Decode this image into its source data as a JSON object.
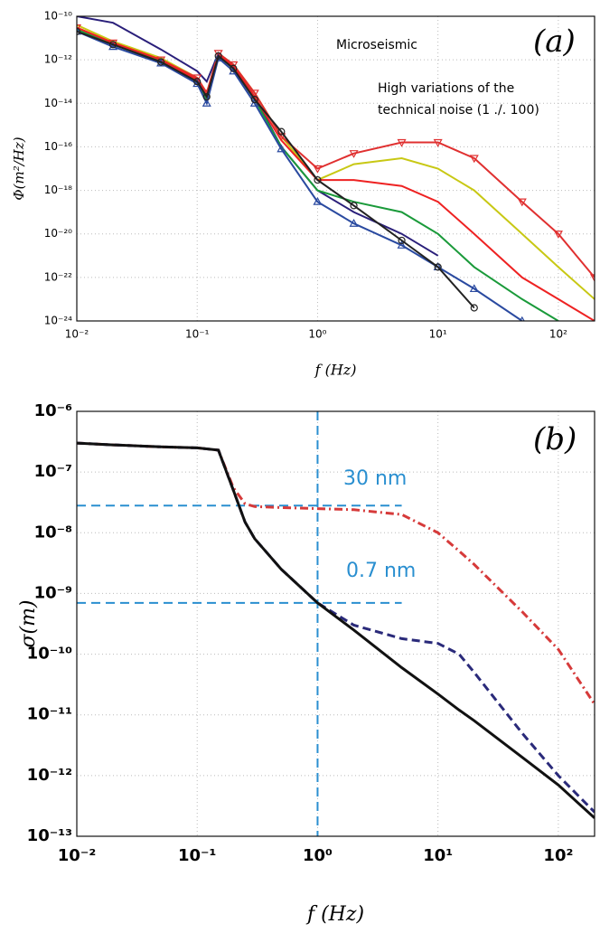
{
  "chart_data": [
    {
      "type": "line",
      "annotations": [
        "(a)",
        "Microseismic",
        [
          "High variations of the",
          "technical noise (1 ./. 100)"
        ]
      ],
      "xlabel": "f (Hz)",
      "ylabel": "Φ(m²/Hz)",
      "xscale": "log",
      "yscale": "log",
      "grid": true,
      "xlim": [
        0.01,
        200
      ],
      "ylim": [
        1e-24,
        1e-10
      ],
      "xticks": [
        {
          "value": 0.01,
          "label": "10⁻²"
        },
        {
          "value": 0.1,
          "label": "10⁻¹"
        },
        {
          "value": 1,
          "label": "10⁰"
        },
        {
          "value": 10,
          "label": "10¹"
        },
        {
          "value": 100,
          "label": "10²"
        }
      ],
      "yticks": [
        {
          "value": 1e-24,
          "label": "10⁻²⁴"
        },
        {
          "value": 1e-22,
          "label": "10⁻²²"
        },
        {
          "value": 1e-20,
          "label": "10⁻²⁰"
        },
        {
          "value": 1e-18,
          "label": "10⁻¹⁸"
        },
        {
          "value": 1e-16,
          "label": "10⁻¹⁶"
        },
        {
          "value": 1e-14,
          "label": "10⁻¹⁴"
        },
        {
          "value": 1e-12,
          "label": "10⁻¹²"
        },
        {
          "value": 1e-10,
          "label": "10⁻¹⁰"
        }
      ],
      "x": [
        0.01,
        0.02,
        0.05,
        0.1,
        0.12,
        0.15,
        0.2,
        0.3,
        0.5,
        1,
        2,
        5,
        10,
        20,
        50,
        100,
        200
      ],
      "series": [
        {
          "color": "#2a1f7a",
          "values": [
            1e-10,
            5e-11,
            3e-12,
            3e-13,
            1e-13,
            2e-12,
            6e-13,
            2e-14,
            1e-16,
            1e-18,
            1e-19,
            1e-20,
            1e-21,
            null,
            null,
            null,
            null
          ]
        },
        {
          "color": "#c8c814",
          "values": [
            4e-11,
            7e-12,
            1.2e-12,
            1.5e-13,
            3e-14,
            2e-12,
            6e-13,
            3e-14,
            3e-16,
            3e-18,
            1.6e-17,
            3e-17,
            1e-17,
            1e-18,
            1e-20,
            3e-22,
            1e-23
          ]
        },
        {
          "color": "#e03030",
          "marker": "triangle-down",
          "values": [
            3e-11,
            6e-12,
            1e-12,
            1.5e-13,
            3e-14,
            2e-12,
            6e-13,
            3e-14,
            3e-16,
            1e-17,
            5e-17,
            1.6e-16,
            1.6e-16,
            3e-17,
            3e-19,
            1e-20,
            1e-22
          ]
        },
        {
          "color": "#1a9a3a",
          "values": [
            2.5e-11,
            5e-12,
            9e-13,
            1e-13,
            1.5e-14,
            1.5e-12,
            4e-13,
            1.5e-14,
            1e-16,
            1e-18,
            3e-19,
            1e-19,
            1e-20,
            3e-22,
            1e-23,
            1e-24,
            null
          ]
        },
        {
          "color": "#ee2222",
          "values": [
            3e-11,
            6e-12,
            1e-12,
            1.2e-13,
            2e-14,
            1.8e-12,
            5e-13,
            2e-14,
            2e-16,
            3e-18,
            3e-18,
            1.6e-18,
            3e-19,
            1e-20,
            1e-22,
            1e-23,
            1e-24
          ]
        },
        {
          "color": "#2a4aa0",
          "marker": "triangle-up",
          "values": [
            2e-11,
            4e-12,
            7e-13,
            8e-14,
            1e-14,
            1.2e-12,
            3e-13,
            1e-14,
            8e-17,
            3e-19,
            3e-20,
            3e-21,
            3e-22,
            3e-23,
            1e-24,
            null,
            null
          ]
        },
        {
          "color": "#222222",
          "marker": "circle",
          "values": [
            2e-11,
            5e-12,
            8e-13,
            1e-13,
            2e-14,
            1.5e-12,
            4e-13,
            1.5e-14,
            5e-16,
            3e-18,
            2e-19,
            5e-21,
            3e-22,
            4e-24,
            null,
            null,
            null
          ]
        }
      ]
    },
    {
      "type": "line",
      "annotations": [
        "(b)",
        "30 nm",
        "0.7 nm"
      ],
      "xlabel": "f (Hz)",
      "ylabel": "σ(m)",
      "xscale": "log",
      "yscale": "log",
      "grid": true,
      "xlim": [
        0.01,
        200
      ],
      "ylim": [
        1e-13,
        1e-06
      ],
      "xticks": [
        {
          "value": 0.01,
          "label": "10⁻²"
        },
        {
          "value": 0.1,
          "label": "10⁻¹"
        },
        {
          "value": 1,
          "label": "10⁰"
        },
        {
          "value": 10,
          "label": "10¹"
        },
        {
          "value": 100,
          "label": "10²"
        }
      ],
      "yticks": [
        {
          "value": 1e-13,
          "label": "10⁻¹³"
        },
        {
          "value": 1e-12,
          "label": "10⁻¹²"
        },
        {
          "value": 1e-11,
          "label": "10⁻¹¹"
        },
        {
          "value": 1e-10,
          "label": "10⁻¹⁰"
        },
        {
          "value": 1e-09,
          "label": "10⁻⁹"
        },
        {
          "value": 1e-08,
          "label": "10⁻⁸"
        },
        {
          "value": 1e-07,
          "label": "10⁻⁷"
        },
        {
          "value": 1e-06,
          "label": "10⁻⁶"
        }
      ],
      "reference_lines": [
        {
          "y": 2.8e-08,
          "x": [
            0.01,
            5
          ]
        },
        {
          "y": 7e-10,
          "x": [
            0.01,
            5
          ]
        },
        {
          "x": 1
        }
      ],
      "reference_color": "#2a8fd0",
      "x": [
        0.01,
        0.02,
        0.05,
        0.1,
        0.15,
        0.2,
        0.25,
        0.3,
        0.5,
        1,
        2,
        5,
        10,
        15,
        20,
        50,
        100,
        200
      ],
      "series": [
        {
          "color": "#d63a3a",
          "line_style": "dashdot",
          "values": [
            3e-07,
            2.8e-07,
            2.6e-07,
            2.5e-07,
            2.3e-07,
            5.5e-08,
            3e-08,
            2.7e-08,
            2.6e-08,
            2.5e-08,
            2.4e-08,
            2e-08,
            1e-08,
            5e-09,
            3e-09,
            5e-10,
            1.2e-10,
            1.5e-11
          ]
        },
        {
          "color": "#2a2a7a",
          "line_style": "dashed",
          "values": [
            3e-07,
            2.8e-07,
            2.6e-07,
            2.5e-07,
            2.3e-07,
            5e-08,
            1.5e-08,
            8e-09,
            2.5e-09,
            7e-10,
            3e-10,
            1.8e-10,
            1.5e-10,
            1e-10,
            5e-11,
            5e-12,
            1e-12,
            2.5e-13
          ]
        },
        {
          "color": "#111111",
          "line_style": "solid",
          "values": [
            3e-07,
            2.8e-07,
            2.6e-07,
            2.5e-07,
            2.3e-07,
            5e-08,
            1.5e-08,
            8e-09,
            2.5e-09,
            7e-10,
            2.5e-10,
            6e-11,
            2.2e-11,
            1.2e-11,
            8e-12,
            2e-12,
            7e-13,
            2e-13
          ]
        }
      ]
    }
  ]
}
